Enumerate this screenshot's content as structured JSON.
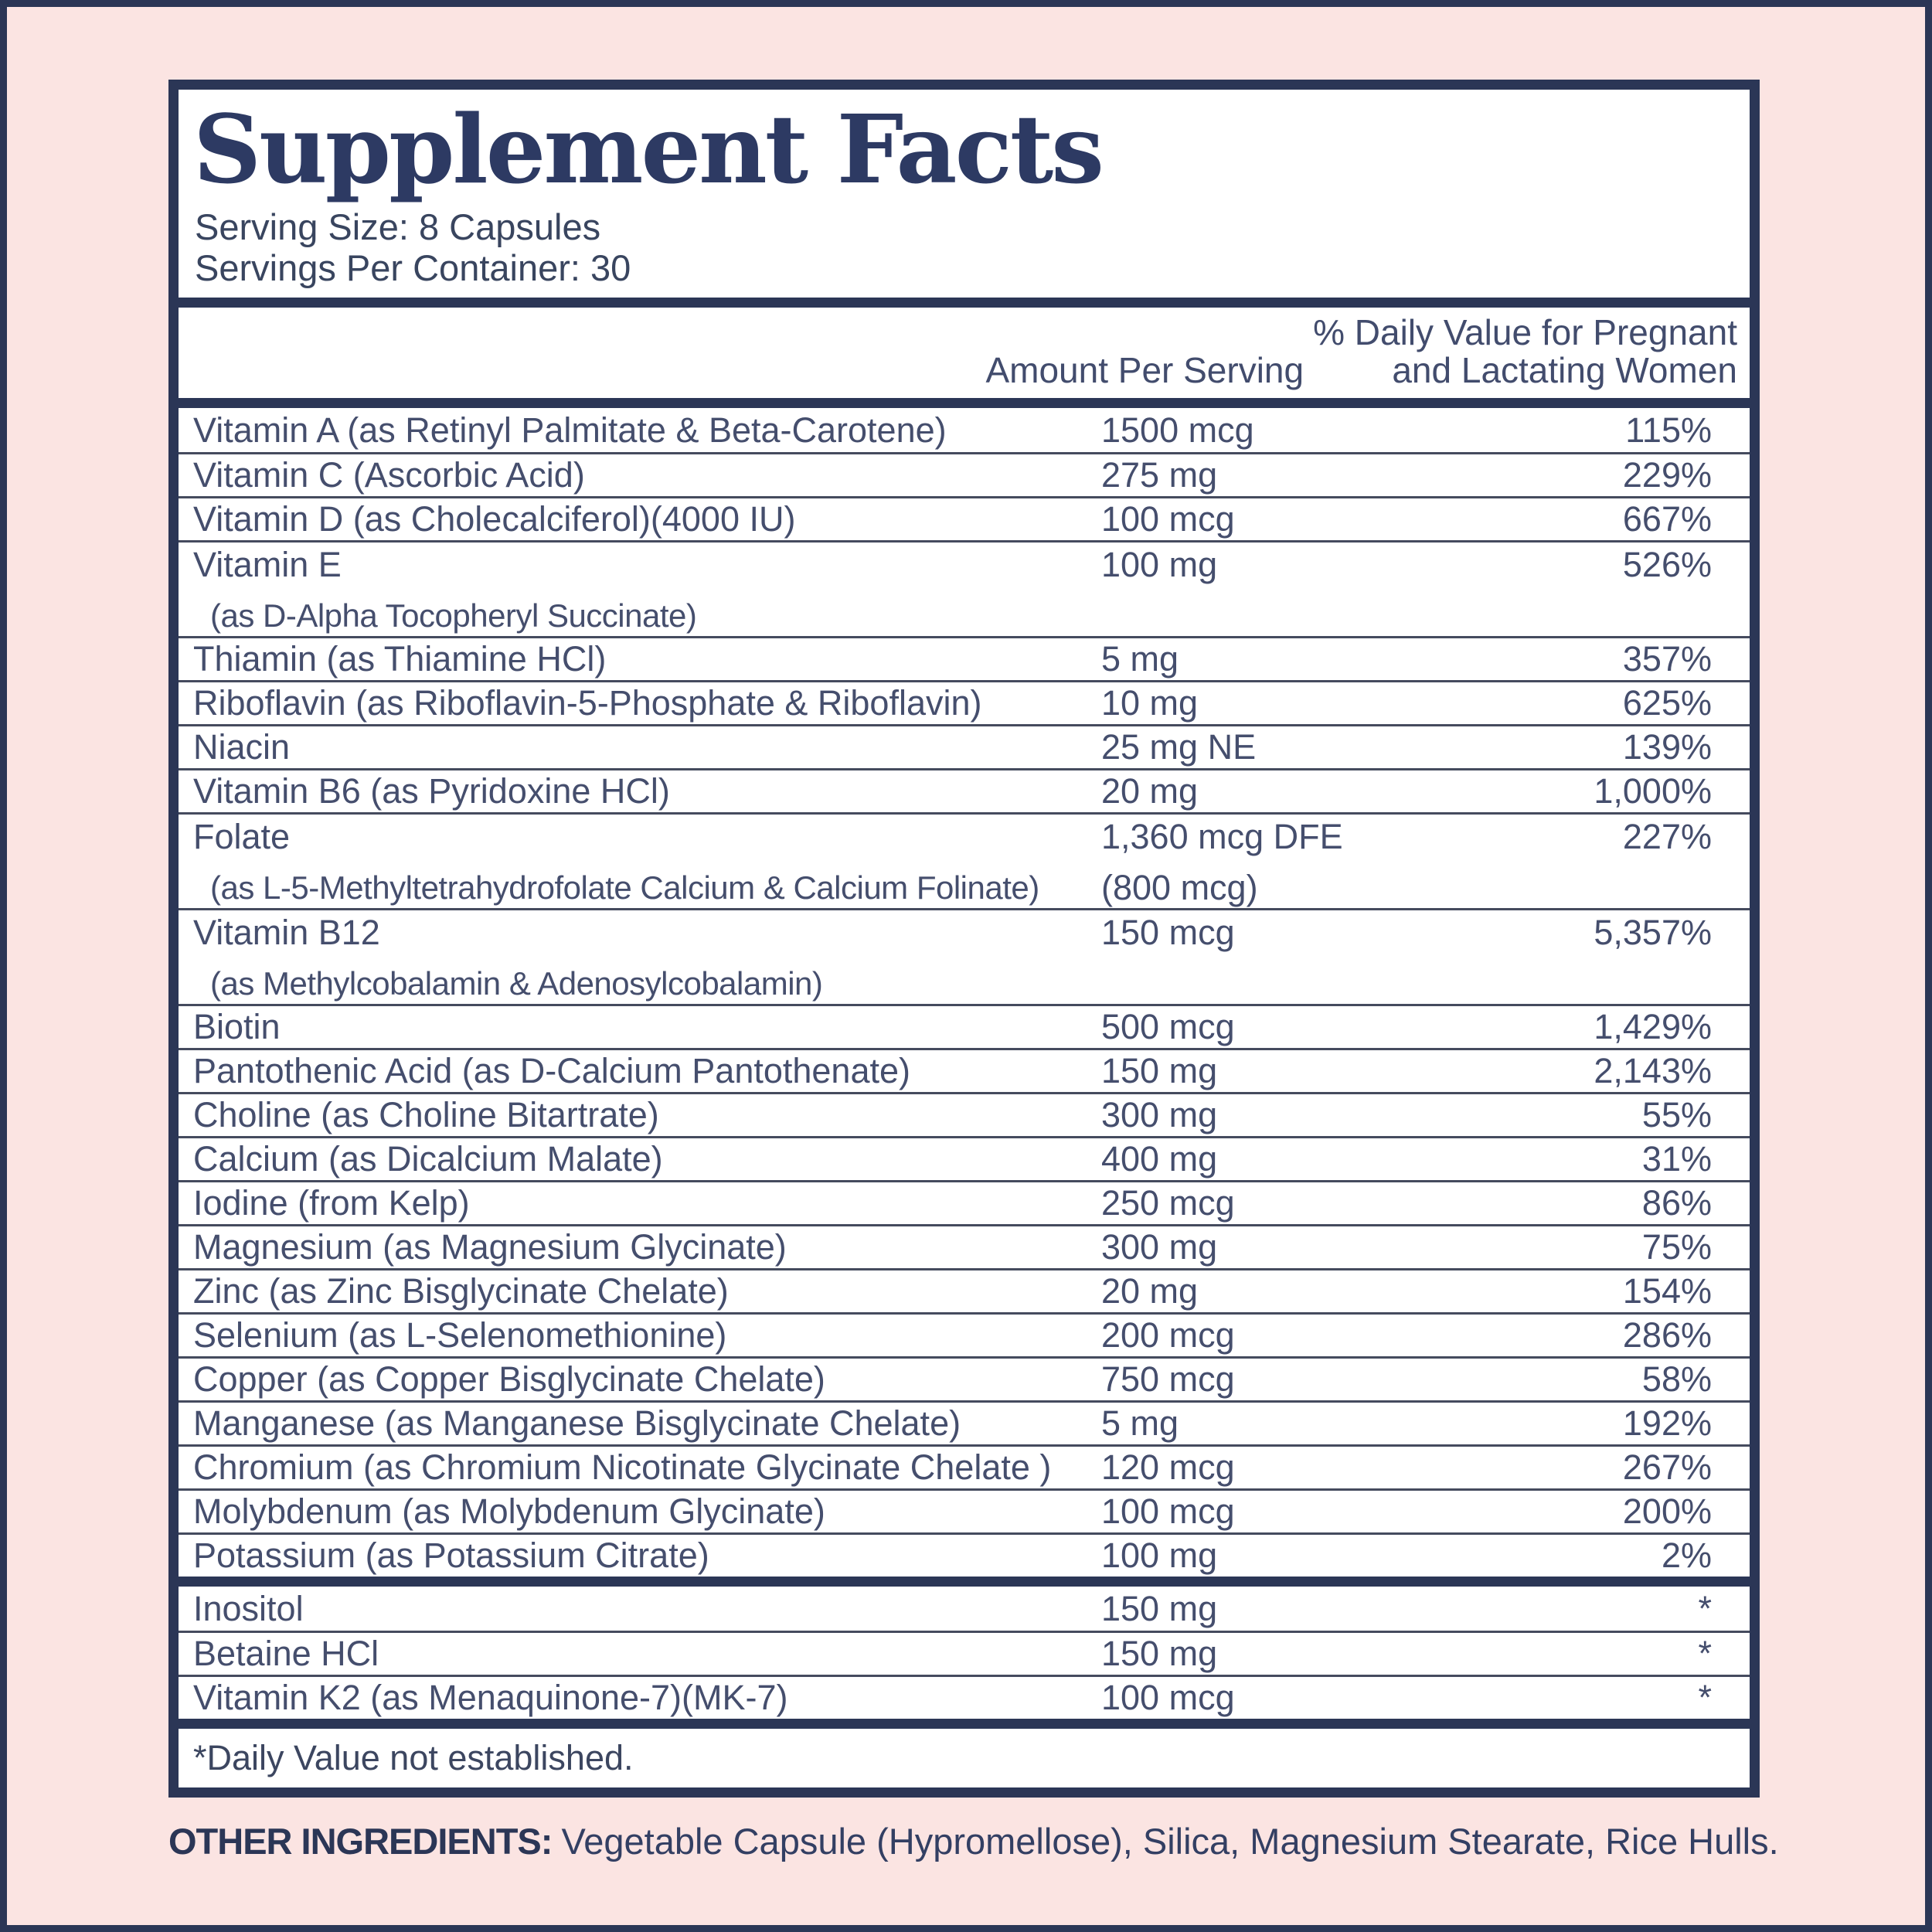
{
  "colors": {
    "background_pink": "#fbe4e2",
    "navy": "#2b3656",
    "title_navy": "#2d3a63",
    "body_text": "#454e6d"
  },
  "panel": {
    "title": "Supplement Facts",
    "serving_size": "Serving Size: 8 Capsules",
    "servings_per_container": "Servings Per Container: 30",
    "col_amount": "Amount Per Serving",
    "col_dv_line1": "% Daily Value for Pregnant",
    "col_dv_line2": "and Lactating Women",
    "footnote": "*Daily Value not established."
  },
  "rows_main": [
    {
      "name": "Vitamin A (as Retinyl Palmitate & Beta-Carotene)",
      "amount": "1500 mcg",
      "dv": "115%"
    },
    {
      "name": "Vitamin C (Ascorbic Acid)",
      "amount": "275 mg",
      "dv": "229%"
    },
    {
      "name": "Vitamin D (as Cholecalciferol)(4000 IU)",
      "amount": "100 mcg",
      "dv": "667%"
    },
    {
      "name": "Vitamin E",
      "name2": "(as D-Alpha Tocopheryl Succinate)",
      "amount": "100 mg",
      "dv": "526%"
    },
    {
      "name": "Thiamin (as Thiamine HCl)",
      "amount": "5 mg",
      "dv": "357%"
    },
    {
      "name": "Riboflavin (as Riboflavin-5-Phosphate & Riboflavin)",
      "amount": "10 mg",
      "dv": "625%"
    },
    {
      "name": "Niacin",
      "amount": "25 mg NE",
      "dv": "139%"
    },
    {
      "name": "Vitamin B6 (as Pyridoxine HCl)",
      "amount": "20 mg",
      "dv": "1,000%"
    },
    {
      "name": "Folate",
      "name2": "(as L-5-Methyltetrahydrofolate Calcium & Calcium Folinate)",
      "amount": "1,360 mcg DFE",
      "amount2": "(800 mcg)",
      "dv": "227%"
    },
    {
      "name": "Vitamin B12",
      "name2": "(as Methylcobalamin & Adenosylcobalamin)",
      "amount": "150 mcg",
      "dv": "5,357%"
    },
    {
      "name": "Biotin",
      "amount": "500 mcg",
      "dv": "1,429%"
    },
    {
      "name": "Pantothenic Acid (as D-Calcium Pantothenate)",
      "amount": "150 mg",
      "dv": "2,143%"
    },
    {
      "name": "Choline (as Choline Bitartrate)",
      "amount": "300 mg",
      "dv": "55%"
    },
    {
      "name": "Calcium (as Dicalcium Malate)",
      "amount": "400 mg",
      "dv": "31%"
    },
    {
      "name": "Iodine (from Kelp)",
      "amount": "250 mcg",
      "dv": "86%"
    },
    {
      "name": "Magnesium (as Magnesium Glycinate)",
      "amount": "300 mg",
      "dv": "75%"
    },
    {
      "name": "Zinc (as Zinc Bisglycinate Chelate)",
      "amount": "20 mg",
      "dv": "154%"
    },
    {
      "name": "Selenium (as L-Selenomethionine)",
      "amount": "200 mcg",
      "dv": "286%"
    },
    {
      "name": "Copper (as Copper Bisglycinate Chelate)",
      "amount": "750 mcg",
      "dv": "58%"
    },
    {
      "name": "Manganese (as Manganese Bisglycinate Chelate)",
      "amount": "5 mg",
      "dv": "192%"
    },
    {
      "name": "Chromium (as Chromium Nicotinate Glycinate Chelate )",
      "amount": "120 mcg",
      "dv": "267%"
    },
    {
      "name": "Molybdenum (as Molybdenum Glycinate)",
      "amount": "100 mcg",
      "dv": "200%"
    },
    {
      "name": "Potassium (as Potassium Citrate)",
      "amount": "100 mg",
      "dv": "2%"
    }
  ],
  "rows_other": [
    {
      "name": "Inositol",
      "amount": "150 mg",
      "dv": "*"
    },
    {
      "name": "Betaine HCl",
      "amount": "150 mg",
      "dv": "*"
    },
    {
      "name": "Vitamin K2 (as Menaquinone-7)(MK-7)",
      "amount": "100 mcg",
      "dv": "*"
    }
  ],
  "other_ingredients": {
    "label": "OTHER INGREDIENTS:",
    "text": "Vegetable Capsule (Hypromellose), Silica, Magnesium Stearate, Rice Hulls."
  }
}
